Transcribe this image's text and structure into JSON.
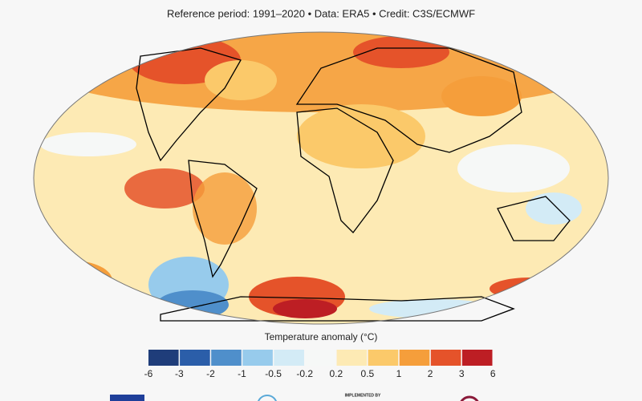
{
  "header": {
    "subtitle": "Reference period: 1991–2020 • Data: ERA5 • Credit: C3S/ECMWF"
  },
  "colorbar": {
    "label": "Temperature anomaly (°C)",
    "ticks": [
      -6,
      -3,
      -2,
      -1,
      -0.5,
      -0.2,
      0.2,
      0.5,
      1,
      2,
      3,
      6
    ],
    "colors": [
      "#1f3d7a",
      "#2b5ea9",
      "#4f8fcb",
      "#97cbec",
      "#d3ebf6",
      "#f6f8f7",
      "#fdeab4",
      "#fbc96a",
      "#f59e3b",
      "#e5532a",
      "#bd1e24"
    ]
  },
  "footer": {
    "implemented": "IMPLEMENTED BY"
  }
}
